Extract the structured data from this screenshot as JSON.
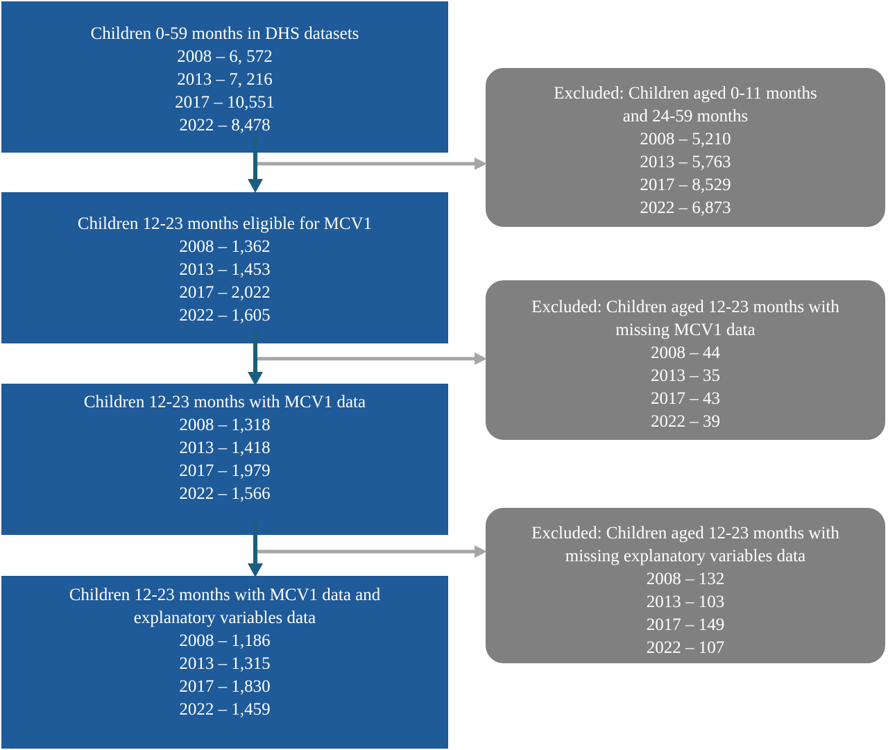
{
  "flow": {
    "main": [
      {
        "title_lines": [
          "Children 0-59 months in DHS datasets"
        ],
        "counts": [
          "2008 – 6, 572",
          "2013 – 7, 216",
          "2017 – 10,551",
          "2022 – 8,478"
        ]
      },
      {
        "title_lines": [
          "Children 12-23 months eligible for MCV1"
        ],
        "counts": [
          "2008 – 1,362",
          "2013 – 1,453",
          "2017 – 2,022",
          "2022 – 1,605"
        ]
      },
      {
        "title_lines": [
          "Children 12-23 months with MCV1 data"
        ],
        "counts": [
          "2008 – 1,318",
          "2013 – 1,418",
          "2017 – 1,979",
          "2022 – 1,566"
        ]
      },
      {
        "title_lines": [
          "Children 12-23 months with MCV1 data and",
          "explanatory variables data"
        ],
        "counts": [
          "2008 – 1,186",
          "2013 – 1,315",
          "2017 – 1,830",
          "2022 – 1,459"
        ]
      }
    ],
    "excluded": [
      {
        "title_lines": [
          "Excluded: Children aged 0-11 months",
          "and 24-59 months"
        ],
        "counts": [
          "2008 – 5,210",
          "2013 – 5,763",
          "2017 – 8,529",
          "2022 – 6,873"
        ]
      },
      {
        "title_lines": [
          "Excluded: Children aged 12-23 months with",
          "missing MCV1 data"
        ],
        "counts": [
          "2008 – 44",
          "2013 – 35",
          "2017 – 43",
          "2022 – 39"
        ]
      },
      {
        "title_lines": [
          "Excluded: Children aged 12-23 months with",
          "missing explanatory variables data"
        ],
        "counts": [
          "2008 – 132",
          "2013 – 103",
          "2017 – 149",
          "2022 – 107"
        ]
      }
    ],
    "colors": {
      "main_box": "#1f5a99",
      "excluded_box": "#808080",
      "down_arrow": "#1b5e7f",
      "side_arrow": "#a6a6a6"
    }
  }
}
